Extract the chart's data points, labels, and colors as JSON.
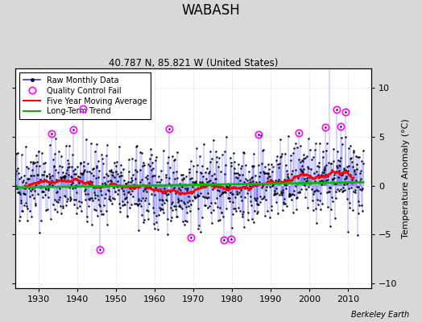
{
  "title": "WABASH",
  "subtitle": "40.787 N, 85.821 W (United States)",
  "ylabel": "Temperature Anomaly (°C)",
  "watermark": "Berkeley Earth",
  "xlim": [
    1924,
    2016
  ],
  "ylim": [
    -10.5,
    12
  ],
  "yticks": [
    -10,
    -5,
    0,
    5,
    10
  ],
  "xticks": [
    1930,
    1940,
    1950,
    1960,
    1970,
    1980,
    1990,
    2000,
    2010
  ],
  "start_year": 1924,
  "end_year": 2014,
  "seed": 42,
  "raw_color": "#3333FF",
  "qc_color": "#FF00FF",
  "moving_avg_color": "#FF0000",
  "trend_color": "#00BB00",
  "bg_color": "#D8D8D8"
}
